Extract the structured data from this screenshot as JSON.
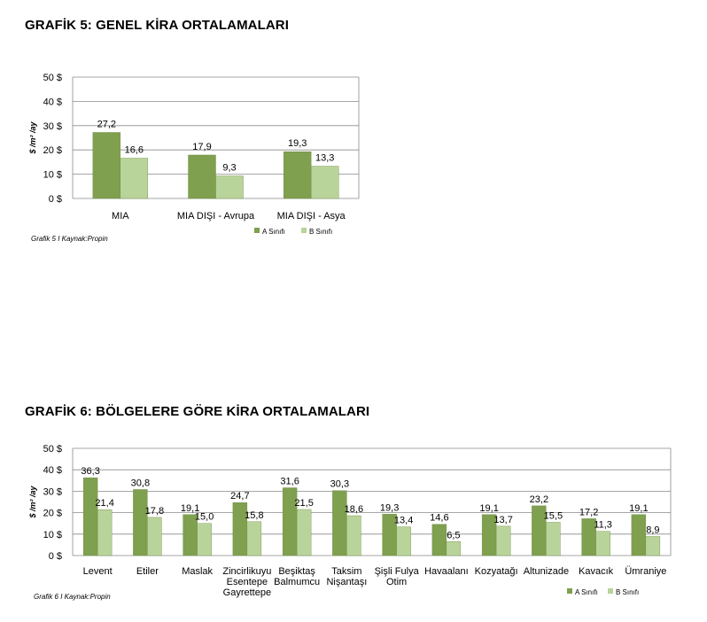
{
  "charts": {
    "grafik5": {
      "title": "GRAFİK 5: GENEL KİRA ORTALAMALARI",
      "caption": "Grafik 5 I Kaynak:Propin"
    },
    "grafik6": {
      "title": "GRAFİK 6: BÖLGELERE GÖRE KİRA ORTALAMALARI",
      "caption": "Grafik 6 I Kaynak:Propin"
    }
  },
  "chart_data": [
    {
      "type": "bar",
      "title": "GRAFİK 5: GENEL KİRA ORTALAMALARI",
      "ylabel": "$ /m² /ay",
      "ylim": [
        0,
        50
      ],
      "yticks": [
        "0 $",
        "10 $",
        "20 $",
        "30 $",
        "40 $",
        "50 $"
      ],
      "grid": true,
      "legend": "bottom-right",
      "categories": [
        [
          "MIA"
        ],
        [
          "MIA DIŞI - Avrupa"
        ],
        [
          "MIA DIŞI - Asya"
        ]
      ],
      "series": [
        {
          "name": "A Sınıfı",
          "color": "#7fa04f",
          "values": [
            27.2,
            17.9,
            19.3
          ],
          "labels": [
            "27,2",
            "17,9",
            "19,3"
          ]
        },
        {
          "name": "B Sınıfı",
          "color": "#b9d49a",
          "values": [
            16.6,
            9.3,
            13.3
          ],
          "labels": [
            "16,6",
            "9,3",
            "13,3"
          ]
        }
      ]
    },
    {
      "type": "bar",
      "title": "GRAFİK 6: BÖLGELERE GÖRE KİRA ORTALAMALARI",
      "ylabel": "$ /m² /ay",
      "ylim": [
        0,
        50
      ],
      "yticks": [
        "0 $",
        "10 $",
        "20 $",
        "30 $",
        "40 $",
        "50 $"
      ],
      "grid": true,
      "legend": "bottom-right",
      "categories": [
        [
          "Levent"
        ],
        [
          "Etiler"
        ],
        [
          "Maslak"
        ],
        [
          "Zincirlikuyu",
          "Esentepe",
          "Gayrettepe"
        ],
        [
          "Beşiktaş",
          "Balmumcu"
        ],
        [
          "Taksim",
          "Nişantaşı"
        ],
        [
          "Şişli Fulya",
          "Otim"
        ],
        [
          "Havaalanı"
        ],
        [
          "Kozyatağı"
        ],
        [
          "Altunizade"
        ],
        [
          "Kavacık"
        ],
        [
          "Ümraniye"
        ]
      ],
      "series": [
        {
          "name": "A Sınıfı",
          "color": "#7fa04f",
          "values": [
            36.3,
            30.8,
            19.1,
            24.7,
            31.6,
            30.3,
            19.3,
            14.6,
            19.1,
            23.2,
            17.2,
            19.1
          ],
          "labels": [
            "36,3",
            "30,8",
            "19,1",
            "24,7",
            "31,6",
            "30,3",
            "19,3",
            "14,6",
            "19,1",
            "23,2",
            "17,2",
            "19,1"
          ]
        },
        {
          "name": "B Sınıfı",
          "color": "#b9d49a",
          "values": [
            21.4,
            17.8,
            15.0,
            15.8,
            21.5,
            18.6,
            13.4,
            6.5,
            13.7,
            15.5,
            11.3,
            8.9
          ],
          "labels": [
            "21,4",
            "17,8",
            "15,0",
            "15,8",
            "21,5",
            "18,6",
            "13,4",
            "6,5",
            "13,7",
            "15,5",
            "11,3",
            "8,9"
          ]
        }
      ]
    }
  ]
}
